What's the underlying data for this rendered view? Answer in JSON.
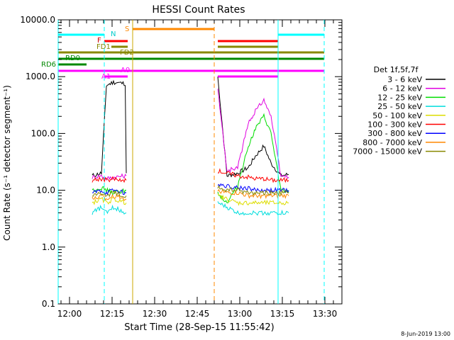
{
  "chart_data": {
    "type": "line",
    "title": "HESSI Count Rates",
    "xlabel": "Start Time (28-Sep-15 11:55:42)",
    "ylabel": "Count Rate (s⁻¹ detector segment⁻¹)",
    "ylim": [
      0.1,
      10000
    ],
    "yscale": "log",
    "xlim_minutes": [
      -4,
      36
    ],
    "x_ticks": [
      {
        "m": 0,
        "label": "12:00"
      },
      {
        "m": 15,
        "label": "12:15"
      },
      {
        "m": 30,
        "label": "12:30"
      },
      {
        "m": 45,
        "label": "12:45"
      },
      {
        "m": 60,
        "label": "13:00"
      },
      {
        "m": 75,
        "label": "13:15"
      },
      {
        "m": 90,
        "label": "13:30"
      }
    ],
    "y_ticks": [
      {
        "v": 0.1,
        "label": "0.1"
      },
      {
        "v": 1,
        "label": "1.0"
      },
      {
        "v": 10,
        "label": "10.0"
      },
      {
        "v": 100,
        "label": "100.0"
      },
      {
        "v": 1000,
        "label": "1000.0"
      },
      {
        "v": 10000,
        "label": "10000.0"
      }
    ],
    "legend_title": "Det 1f,5f,7f",
    "series": [
      {
        "name": "3 - 6 keV",
        "color": "#000000",
        "seg1": [
          18,
          20,
          700,
          800,
          750,
          19,
          20
        ],
        "seg2": [
          1000,
          18,
          20,
          25,
          40,
          60,
          30,
          18,
          19
        ]
      },
      {
        "name": "6 - 12 keV",
        "color": "#e000e0",
        "seg1": [
          17,
          18,
          16,
          17,
          18
        ],
        "seg2": [
          600,
          22,
          25,
          150,
          250,
          400,
          200,
          18,
          17
        ]
      },
      {
        "name": "12 - 25 keV",
        "color": "#00dd00",
        "seg1": [
          10,
          11,
          10,
          9,
          10
        ],
        "seg2": [
          9,
          6,
          12,
          60,
          120,
          200,
          100,
          10,
          9
        ]
      },
      {
        "name": "25 - 50 keV",
        "color": "#00dddd",
        "seg1": [
          4,
          5,
          4,
          5,
          4
        ],
        "seg2": [
          6,
          5,
          4,
          4,
          4,
          4,
          4,
          4,
          4
        ]
      },
      {
        "name": "50 - 100 keV",
        "color": "#dddd00",
        "seg1": [
          6,
          7,
          6,
          7,
          6
        ],
        "seg2": [
          8,
          7,
          6,
          6,
          6,
          6,
          6,
          6,
          6
        ]
      },
      {
        "name": "100 - 300 keV",
        "color": "#ff0000",
        "seg1": [
          15,
          16,
          15,
          16,
          15
        ],
        "seg2": [
          22,
          20,
          18,
          17,
          16,
          16,
          15,
          15,
          15
        ]
      },
      {
        "name": "300 - 800 keV",
        "color": "#0000ff",
        "seg1": [
          9,
          10,
          9,
          10,
          9
        ],
        "seg2": [
          13,
          12,
          11,
          11,
          10,
          10,
          10,
          10,
          10
        ]
      },
      {
        "name": "800 - 7000 keV",
        "color": "#ff8800",
        "seg1": [
          7,
          8,
          7,
          8,
          7
        ],
        "seg2": [
          10,
          9,
          9,
          8,
          8,
          8,
          8,
          8,
          8
        ]
      },
      {
        "name": "7000 - 15000 keV",
        "color": "#888800",
        "seg1": [
          8,
          9,
          8,
          9,
          8
        ],
        "seg2": [
          11,
          10,
          10,
          9,
          9,
          9,
          9,
          9,
          9
        ]
      }
    ],
    "flag_labels": [
      "N",
      "S",
      "F",
      "FD1",
      "FD2",
      "RD0",
      "RD6",
      "A1",
      "A0"
    ],
    "timestamp": "8-Jun-2019 13:00"
  }
}
